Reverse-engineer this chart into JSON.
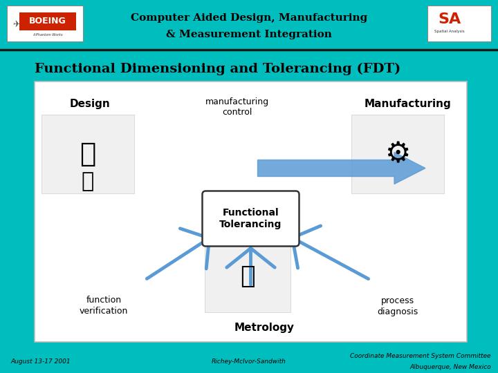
{
  "bg_color": "#00BEBE",
  "header_title_line1": "Computer Aided Design, Manufacturing",
  "header_title_line2": "& Measurement Integration",
  "header_title_color": "#000000",
  "header_title_fontsize": 11,
  "divider_color": "#1a1a1a",
  "slide_title": "Functional Dimensioning and Tolerancing (FDT)",
  "slide_title_fontsize": 14,
  "slide_title_color": "#000000",
  "content_bg": "#ffffff",
  "footer_left": "August 13-17 2001",
  "footer_center": "Richey-McIvor-Sandwith",
  "footer_right_line1": "Coordinate Measurement System Committee",
  "footer_right_line2": "Albuquerque, New Mexico",
  "footer_fontsize": 6.5,
  "footer_color": "#000000",
  "boeing_text": "BOEING",
  "arrow_color": "#5B9BD5",
  "ft_box_color": "#ffffff",
  "ft_text_color": "#000000"
}
